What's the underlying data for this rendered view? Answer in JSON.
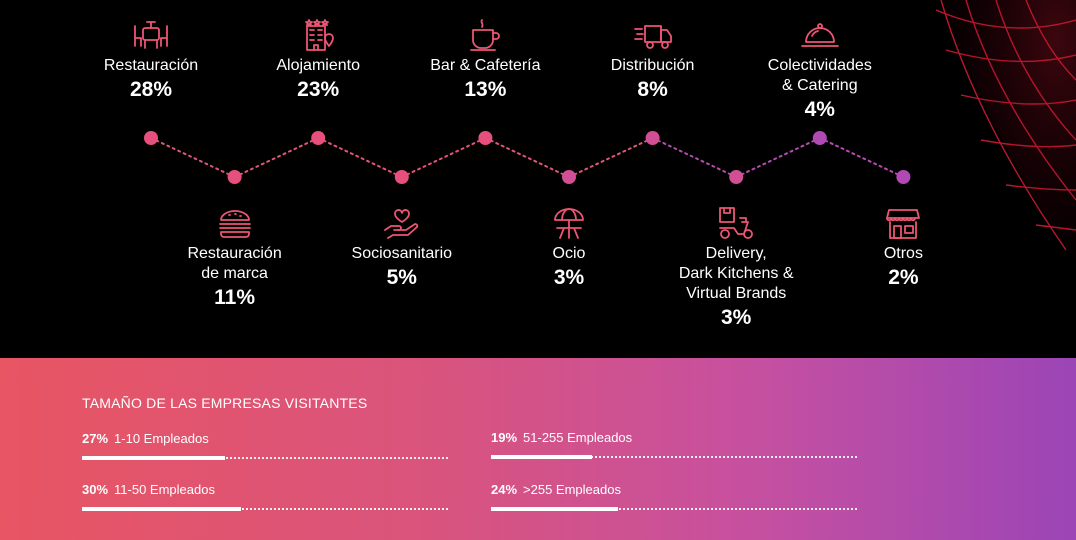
{
  "colors": {
    "accent_pink": "#e24f8a",
    "accent_purple": "#9b45b6",
    "accent_red": "#e85563",
    "background": "#000000"
  },
  "chart_data": {
    "type": "line",
    "description_type": "sector share timeline (zig-zag dots)",
    "categories": [
      "Restauración",
      "Restauración de marca",
      "Alojamiento",
      "Sociosanitario",
      "Bar & Cafetería",
      "Ocio",
      "Distribución",
      "Delivery, Dark Kitchens & Virtual Brands",
      "Colectividades & Catering",
      "Otros"
    ],
    "series": [
      {
        "values": [
          28,
          11,
          23,
          5,
          13,
          3,
          8,
          3,
          4,
          2
        ]
      }
    ]
  },
  "sectors": [
    {
      "name": "Restauración",
      "pct": "28%",
      "icon": "dining-table-icon",
      "row": "top"
    },
    {
      "name": "Restauración\nde marca",
      "pct": "11%",
      "icon": "burger-icon",
      "row": "bottom"
    },
    {
      "name": "Alojamiento",
      "pct": "23%",
      "icon": "hotel-icon",
      "row": "top"
    },
    {
      "name": "Sociosanitario",
      "pct": "5%",
      "icon": "heart-hand-icon",
      "row": "bottom"
    },
    {
      "name": "Bar & Cafetería",
      "pct": "13%",
      "icon": "coffee-cup-icon",
      "row": "top"
    },
    {
      "name": "Ocio",
      "pct": "3%",
      "icon": "umbrella-table-icon",
      "row": "bottom"
    },
    {
      "name": "Distribución",
      "pct": "8%",
      "icon": "delivery-truck-icon",
      "row": "top"
    },
    {
      "name": "Delivery,\nDark Kitchens &\nVirtual Brands",
      "pct": "3%",
      "icon": "delivery-scooter-icon",
      "row": "bottom"
    },
    {
      "name": "Colectividades\n& Catering",
      "pct": "4%",
      "icon": "cloche-icon",
      "row": "top"
    },
    {
      "name": "Otros",
      "pct": "2%",
      "icon": "shop-icon",
      "row": "bottom"
    }
  ],
  "company_size": {
    "title": "TAMAÑO DE LAS EMPRESAS VISITANTES",
    "items": [
      {
        "pct": "27%",
        "label": "1-10 Empleados",
        "value": 27
      },
      {
        "pct": "30%",
        "label": "11-50 Empleados",
        "value": 30
      },
      {
        "pct": "19%",
        "label": "51-255 Empleados",
        "value": 19
      },
      {
        "pct": "24%",
        "label": ">255 Empleados",
        "value": 24
      }
    ]
  }
}
